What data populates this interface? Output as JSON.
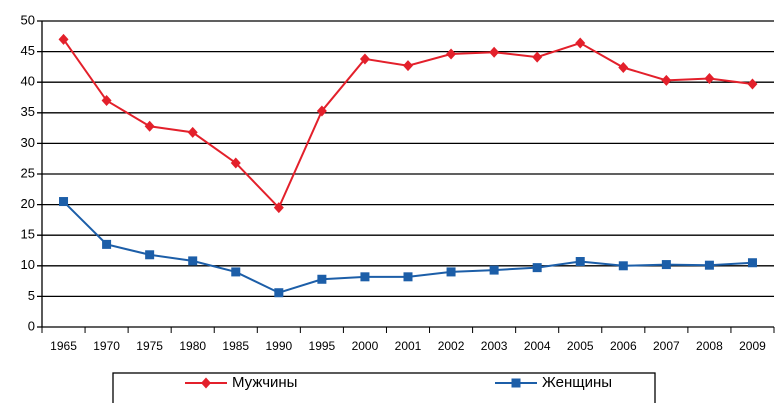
{
  "chart_data": {
    "type": "line",
    "categories": [
      "1965",
      "1970",
      "1975",
      "1980",
      "1985",
      "1990",
      "1995",
      "2000",
      "2001",
      "2002",
      "2003",
      "2004",
      "2005",
      "2006",
      "2007",
      "2008",
      "2009"
    ],
    "series": [
      {
        "name": "Мужчины",
        "color": "#e3202b",
        "marker": "diamond",
        "values": [
          47,
          37,
          32.8,
          31.8,
          26.8,
          19.5,
          35.3,
          43.8,
          42.7,
          44.6,
          44.9,
          44.1,
          46.4,
          42.4,
          40.3,
          40.6,
          39.7
        ]
      },
      {
        "name": "Женщины",
        "color": "#1c5ea8",
        "marker": "square",
        "values": [
          20.5,
          13.5,
          11.8,
          10.8,
          9,
          5.6,
          7.8,
          8.2,
          8.2,
          9,
          9.3,
          9.7,
          10.7,
          10,
          10.2,
          10.1,
          10.5
        ]
      }
    ],
    "ylim": [
      0,
      50
    ],
    "yticks": [
      0,
      5,
      10,
      15,
      20,
      25,
      30,
      35,
      40,
      45,
      50
    ],
    "grid": true
  }
}
